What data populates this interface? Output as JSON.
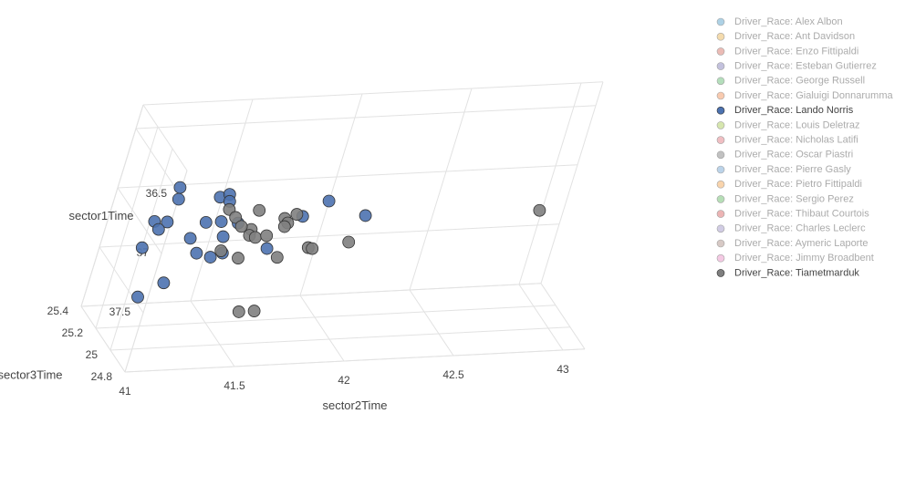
{
  "chart_data": {
    "type": "scatter3d",
    "x_label": "sector2Time",
    "y_label": "sector1Time",
    "z_label": "sector3Time",
    "xlim": [
      41,
      43.1
    ],
    "xticks": [
      41,
      41.5,
      42,
      42.5,
      43
    ],
    "ylim": [
      36.3,
      38
    ],
    "yticks": [
      36.5,
      37,
      37.5
    ],
    "zlim": [
      24.8,
      25.4
    ],
    "zticks": [
      24.8,
      25,
      25.2,
      25.4
    ],
    "grid": true,
    "legend": "right",
    "series": [
      {
        "name": "Driver_Race: Alex Albon",
        "color": "#4c9ac7",
        "visible": false,
        "x": [],
        "y": [],
        "z": []
      },
      {
        "name": "Driver_Race: Ant Davidson",
        "color": "#e8b04b",
        "visible": false,
        "x": [],
        "y": [],
        "z": []
      },
      {
        "name": "Driver_Race: Enzo Fittipaldi",
        "color": "#d46a5c",
        "visible": false,
        "x": [],
        "y": [],
        "z": []
      },
      {
        "name": "Driver_Race: Esteban Gutierrez",
        "color": "#7b78b6",
        "visible": false,
        "x": [],
        "y": [],
        "z": []
      },
      {
        "name": "Driver_Race: George Russell",
        "color": "#5bb86b",
        "visible": false,
        "x": [],
        "y": [],
        "z": []
      },
      {
        "name": "Driver_Race: Gialuigi Donnarumma",
        "color": "#f08c4f",
        "visible": false,
        "x": [],
        "y": [],
        "z": []
      },
      {
        "name": "Driver_Race: Lando Norris",
        "color": "#4c72b0",
        "visible": true,
        "x": [
          41.19,
          41.2,
          41.39,
          41.43,
          41.44,
          41.12,
          41.18,
          41.15,
          41.36,
          41.43,
          41.51,
          41.31,
          41.46,
          41.36,
          41.43,
          41.48,
          41.1,
          41.25,
          41.15,
          41.68,
          41.8,
          41.9,
          42.09
        ],
        "y": [
          36.83,
          36.93,
          36.93,
          36.91,
          36.97,
          37.11,
          37.12,
          37.18,
          37.14,
          37.14,
          37.16,
          37.27,
          37.27,
          37.4,
          37.44,
          37.41,
          37.33,
          37.64,
          37.75,
          37.39,
          37.13,
          37.01,
          37.15
        ],
        "z": [
          25.2,
          25.2,
          25.2,
          25.2,
          25.2,
          25.2,
          25.2,
          25.2,
          25.2,
          25.2,
          25.2,
          25.2,
          25.2,
          25.2,
          25.2,
          25.2,
          25.2,
          25.2,
          25.2,
          25.2,
          25.2,
          25.2,
          25.2
        ]
      },
      {
        "name": "Driver_Race: Louis Deletraz",
        "color": "#a5c94e",
        "visible": false,
        "x": [],
        "y": [],
        "z": []
      },
      {
        "name": "Driver_Race: Nicholas Latifi",
        "color": "#e0707a",
        "visible": false,
        "x": [],
        "y": [],
        "z": []
      },
      {
        "name": "Driver_Race: Oscar Piastri",
        "color": "#777777",
        "visible": false,
        "x": [],
        "y": [],
        "z": []
      },
      {
        "name": "Driver_Race: Pierre Gasly",
        "color": "#6a9fcf",
        "visible": false,
        "x": [],
        "y": [],
        "z": []
      },
      {
        "name": "Driver_Race: Pietro Fittipaldi",
        "color": "#f2a24a",
        "visible": false,
        "x": [],
        "y": [],
        "z": []
      },
      {
        "name": "Driver_Race: Sergio Perez",
        "color": "#5fb760",
        "visible": false,
        "x": [],
        "y": [],
        "z": []
      },
      {
        "name": "Driver_Race: Thibaut Courtois",
        "color": "#d65b5b",
        "visible": false,
        "x": [],
        "y": [],
        "z": []
      },
      {
        "name": "Driver_Race: Charles Leclerc",
        "color": "#9a8fc4",
        "visible": false,
        "x": [],
        "y": [],
        "z": []
      },
      {
        "name": "Driver_Race: Aymeric Laporte",
        "color": "#a88a80",
        "visible": false,
        "x": [],
        "y": [],
        "z": []
      },
      {
        "name": "Driver_Race: Jimmy Broadbent",
        "color": "#e78ac3",
        "visible": false,
        "x": [],
        "y": [],
        "z": []
      },
      {
        "name": "Driver_Race: Tiametmarduk",
        "color": "#7f7f7f",
        "visible": true,
        "x": [
          41.45,
          41.59,
          41.49,
          41.72,
          41.77,
          41.74,
          41.73,
          41.58,
          41.58,
          41.61,
          41.66,
          41.53,
          41.47,
          41.56,
          41.74,
          41.87,
          41.89,
          42.05,
          41.64,
          41.71,
          42.89
        ],
        "y": [
          37.04,
          37.06,
          37.11,
          37.14,
          37.11,
          37.18,
          37.21,
          37.22,
          37.27,
          37.29,
          37.28,
          37.19,
          37.39,
          37.46,
          37.47,
          37.4,
          37.41,
          37.37,
          37.92,
          37.92,
          37.18
        ],
        "z": [
          25.2,
          25.2,
          25.2,
          25.2,
          25.2,
          25.2,
          25.2,
          25.2,
          25.2,
          25.2,
          25.2,
          25.2,
          25.2,
          25.2,
          25.2,
          25.2,
          25.2,
          25.2,
          25.2,
          25.2,
          25.2
        ]
      }
    ]
  }
}
